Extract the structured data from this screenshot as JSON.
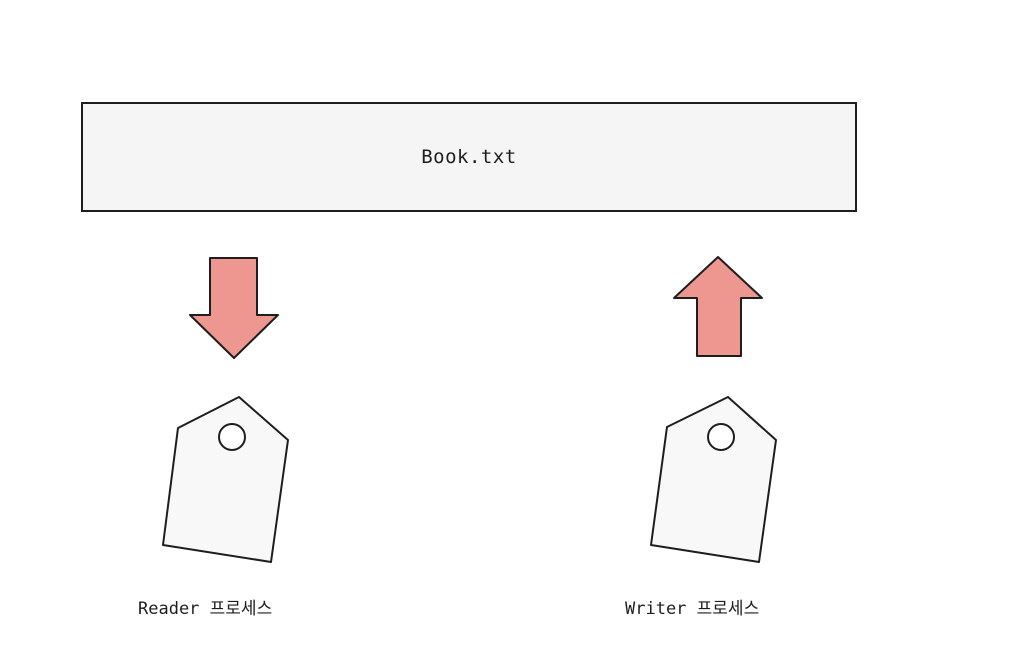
{
  "file": {
    "name": "Book.txt"
  },
  "processes": {
    "reader": {
      "label": "Reader 프로세스",
      "arrow_direction": "down",
      "icon": "tag-icon"
    },
    "writer": {
      "label": "Writer 프로세스",
      "arrow_direction": "up",
      "icon": "tag-icon"
    }
  },
  "colors": {
    "arrow_fill": "#ee9690",
    "stroke": "#1e1e1e",
    "box_fill": "#f5f5f5",
    "tag_fill": "#f8f8f8"
  }
}
